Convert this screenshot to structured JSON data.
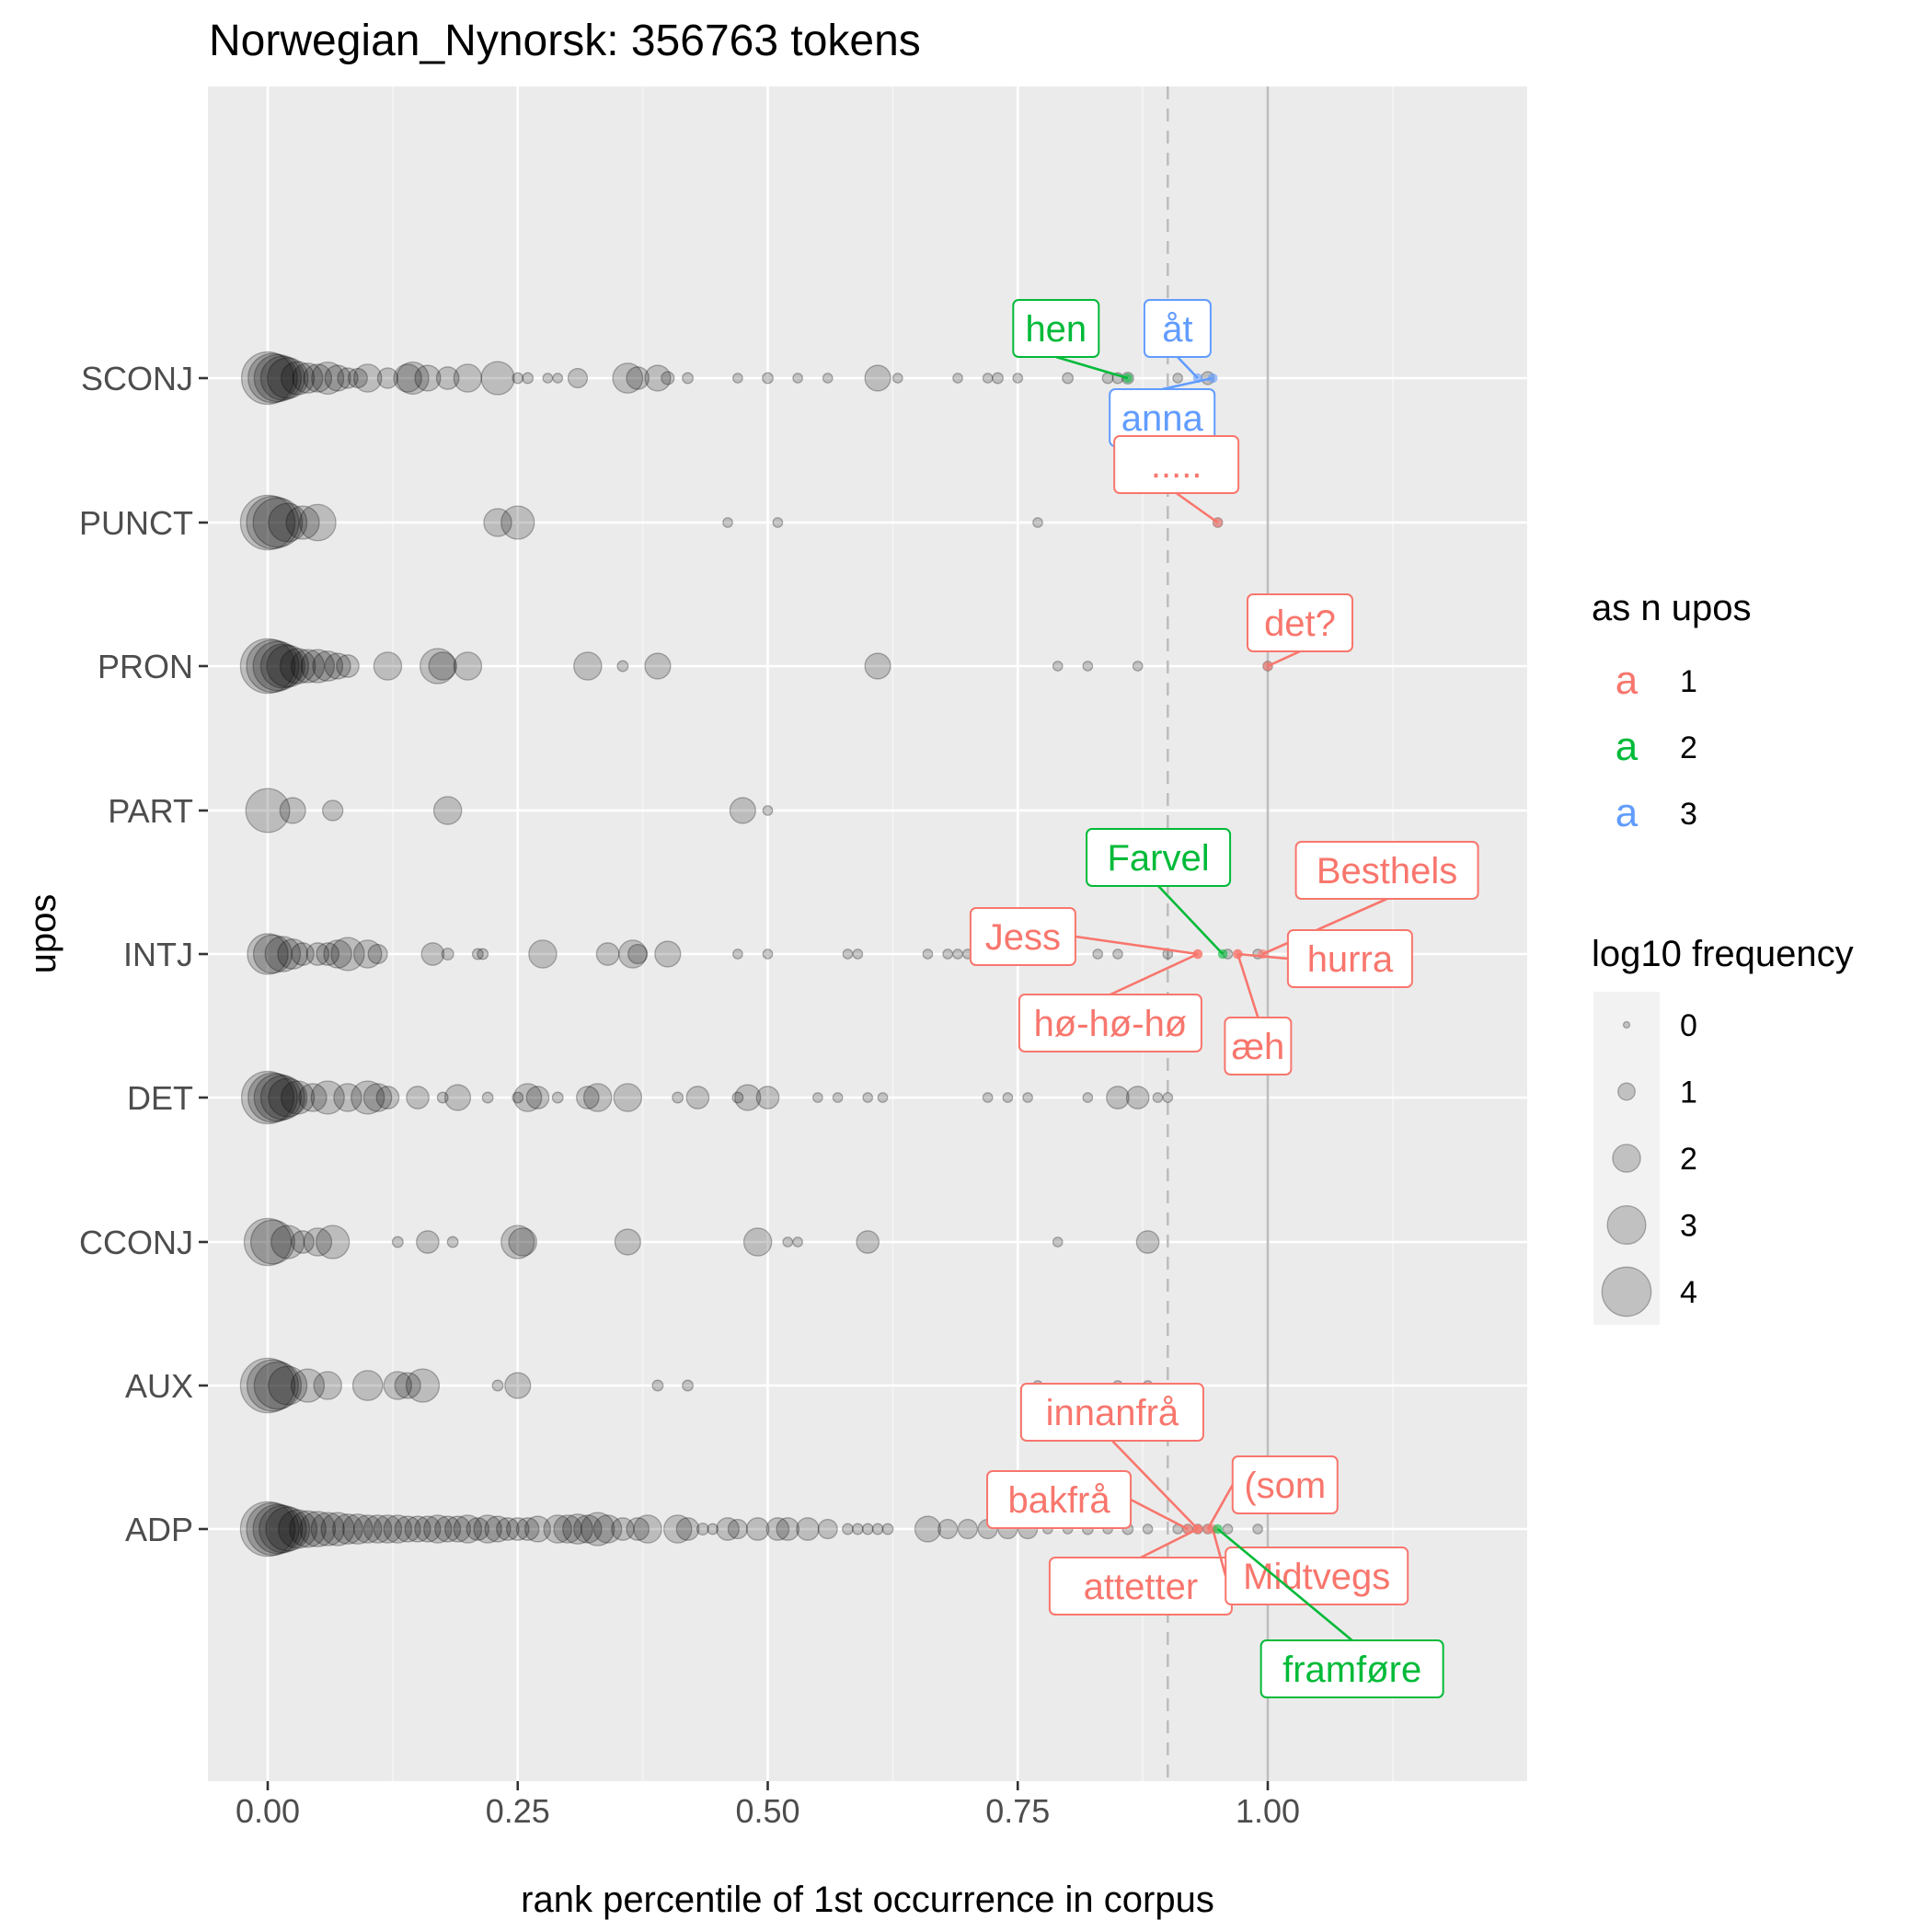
{
  "chart_data": {
    "type": "scatter",
    "title": "Norwegian_Nynorsk: 356763 tokens",
    "xlabel": "rank percentile of 1st occurrence in corpus",
    "ylabel": "upos",
    "xlim": [
      -0.06,
      1.26
    ],
    "x_ticks": [
      0,
      0.25,
      0.5,
      0.75,
      1
    ],
    "x_tick_labels": [
      "0.00",
      "0.25",
      "0.50",
      "0.75",
      "1.00"
    ],
    "categories": [
      "ADP",
      "AUX",
      "CCONJ",
      "DET",
      "INTJ",
      "PART",
      "PRON",
      "PUNCT",
      "SCONJ"
    ],
    "reference_lines": [
      {
        "x": 0.9,
        "style": "dashed"
      },
      {
        "x": 1.0,
        "style": "solid"
      }
    ],
    "grid": true,
    "legends": {
      "color": {
        "title": "as n upos",
        "entries": [
          {
            "key": "a",
            "label": "1",
            "color": "#F8766D"
          },
          {
            "key": "a",
            "label": "2",
            "color": "#00BA38"
          },
          {
            "key": "a",
            "label": "3",
            "color": "#619CFF"
          }
        ]
      },
      "size": {
        "title": "log10 frequency",
        "entries": [
          "0",
          "1",
          "2",
          "3",
          "4"
        ]
      }
    },
    "series": [
      {
        "category": "SCONJ",
        "points": [
          [
            0,
            4.3
          ],
          [
            0.005,
            4
          ],
          [
            0.01,
            3.8
          ],
          [
            0.015,
            3.5
          ],
          [
            0.02,
            3.2
          ],
          [
            0.03,
            2.5
          ],
          [
            0.04,
            2.2
          ],
          [
            0.05,
            2
          ],
          [
            0.06,
            2.4
          ],
          [
            0.07,
            1.8
          ],
          [
            0.08,
            1.3
          ],
          [
            0.09,
            1.2
          ],
          [
            0.1,
            2
          ],
          [
            0.12,
            1.3
          ],
          [
            0.14,
            2
          ],
          [
            0.145,
            2.4
          ],
          [
            0.16,
            1.8
          ],
          [
            0.18,
            1.5
          ],
          [
            0.2,
            2
          ],
          [
            0.23,
            2.5
          ],
          [
            0.25,
            0.4
          ],
          [
            0.26,
            0.4
          ],
          [
            0.28,
            0.3
          ],
          [
            0.29,
            0.3
          ],
          [
            0.31,
            1.2
          ],
          [
            0.36,
            2.2
          ],
          [
            0.37,
            1.5
          ],
          [
            0.39,
            1.8
          ],
          [
            0.4,
            0.6
          ],
          [
            0.42,
            0.4
          ],
          [
            0.47,
            0.3
          ],
          [
            0.5,
            0.4
          ],
          [
            0.53,
            0.3
          ],
          [
            0.56,
            0.3
          ],
          [
            0.61,
            1.8
          ],
          [
            0.63,
            0.3
          ],
          [
            0.69,
            0.3
          ],
          [
            0.72,
            0.3
          ],
          [
            0.73,
            0.4
          ],
          [
            0.75,
            0.3
          ],
          [
            0.8,
            0.4
          ],
          [
            0.84,
            0.4
          ],
          [
            0.85,
            0.4
          ],
          [
            0.86,
            0.5
          ],
          [
            0.91,
            0.3
          ],
          [
            0.94,
            0.6
          ]
        ]
      },
      {
        "category": "PUNCT",
        "points": [
          [
            0,
            4.5
          ],
          [
            0.005,
            4.3
          ],
          [
            0.01,
            4
          ],
          [
            0.02,
            3
          ],
          [
            0.035,
            2.5
          ],
          [
            0.05,
            2.8
          ],
          [
            0.23,
            2
          ],
          [
            0.25,
            2.5
          ],
          [
            0.46,
            0.3
          ],
          [
            0.51,
            0.3
          ],
          [
            0.77,
            0.3
          ],
          [
            0.95,
            0.3
          ]
        ]
      },
      {
        "category": "PRON",
        "points": [
          [
            0,
            4.5
          ],
          [
            0.005,
            4.3
          ],
          [
            0.01,
            4
          ],
          [
            0.015,
            3.5
          ],
          [
            0.02,
            3.3
          ],
          [
            0.03,
            2.7
          ],
          [
            0.04,
            2.5
          ],
          [
            0.05,
            2.5
          ],
          [
            0.06,
            2.2
          ],
          [
            0.07,
            1.8
          ],
          [
            0.08,
            1.5
          ],
          [
            0.12,
            2
          ],
          [
            0.17,
            2.7
          ],
          [
            0.175,
            2
          ],
          [
            0.2,
            2
          ],
          [
            0.32,
            2
          ],
          [
            0.355,
            0.4
          ],
          [
            0.39,
            1.8
          ],
          [
            0.61,
            1.8
          ],
          [
            0.79,
            0.3
          ],
          [
            0.82,
            0.3
          ],
          [
            0.87,
            0.3
          ],
          [
            1.0,
            0.3
          ]
        ]
      },
      {
        "category": "PART",
        "points": [
          [
            0,
            3.5
          ],
          [
            0.025,
            1.8
          ],
          [
            0.065,
            1.3
          ],
          [
            0.18,
            2
          ],
          [
            0.475,
            1.8
          ],
          [
            0.5,
            0.3
          ]
        ]
      },
      {
        "category": "INTJ",
        "points": [
          [
            0,
            3.2
          ],
          [
            0.005,
            3
          ],
          [
            0.015,
            2.7
          ],
          [
            0.025,
            2.2
          ],
          [
            0.035,
            1.5
          ],
          [
            0.05,
            1.5
          ],
          [
            0.06,
            1.5
          ],
          [
            0.07,
            2
          ],
          [
            0.08,
            2.5
          ],
          [
            0.1,
            2
          ],
          [
            0.11,
            1.2
          ],
          [
            0.165,
            1.5
          ],
          [
            0.18,
            0.5
          ],
          [
            0.21,
            0.4
          ],
          [
            0.215,
            0.4
          ],
          [
            0.275,
            2
          ],
          [
            0.34,
            1.5
          ],
          [
            0.365,
            2
          ],
          [
            0.37,
            1.2
          ],
          [
            0.4,
            1.8
          ],
          [
            0.47,
            0.3
          ],
          [
            0.5,
            0.3
          ],
          [
            0.58,
            0.3
          ],
          [
            0.59,
            0.3
          ],
          [
            0.66,
            0.3
          ],
          [
            0.68,
            0.3
          ],
          [
            0.69,
            0.3
          ],
          [
            0.7,
            0.3
          ],
          [
            0.75,
            0.3
          ],
          [
            0.8,
            0.3
          ],
          [
            0.83,
            0.3
          ],
          [
            0.85,
            0.3
          ],
          [
            0.9,
            0.3
          ],
          [
            0.96,
            0.3
          ],
          [
            0.99,
            0.3
          ]
        ]
      },
      {
        "category": "DET",
        "points": [
          [
            0,
            4.3
          ],
          [
            0.005,
            4
          ],
          [
            0.01,
            3.8
          ],
          [
            0.015,
            3.5
          ],
          [
            0.02,
            3
          ],
          [
            0.03,
            2.5
          ],
          [
            0.045,
            2
          ],
          [
            0.06,
            2.5
          ],
          [
            0.08,
            2
          ],
          [
            0.1,
            2.5
          ],
          [
            0.11,
            2
          ],
          [
            0.12,
            1.5
          ],
          [
            0.15,
            1.5
          ],
          [
            0.175,
            0.4
          ],
          [
            0.19,
            1.8
          ],
          [
            0.22,
            0.4
          ],
          [
            0.25,
            0.4
          ],
          [
            0.26,
            2
          ],
          [
            0.27,
            1.5
          ],
          [
            0.29,
            0.4
          ],
          [
            0.32,
            1.5
          ],
          [
            0.33,
            2
          ],
          [
            0.36,
            2
          ],
          [
            0.41,
            0.4
          ],
          [
            0.43,
            1.5
          ],
          [
            0.47,
            0.4
          ],
          [
            0.48,
            1.8
          ],
          [
            0.5,
            1.5
          ],
          [
            0.55,
            0.3
          ],
          [
            0.57,
            0.3
          ],
          [
            0.6,
            0.3
          ],
          [
            0.615,
            0.3
          ],
          [
            0.72,
            0.3
          ],
          [
            0.74,
            0.3
          ],
          [
            0.76,
            0.3
          ],
          [
            0.82,
            0.3
          ],
          [
            0.85,
            1.5
          ],
          [
            0.87,
            1.5
          ],
          [
            0.89,
            0.3
          ],
          [
            0.9,
            0.3
          ]
        ]
      },
      {
        "category": "CCONJ",
        "points": [
          [
            0,
            3.8
          ],
          [
            0.005,
            3.5
          ],
          [
            0.02,
            2.5
          ],
          [
            0.035,
            1.5
          ],
          [
            0.05,
            2
          ],
          [
            0.065,
            2.5
          ],
          [
            0.13,
            0.4
          ],
          [
            0.16,
            1.5
          ],
          [
            0.185,
            0.4
          ],
          [
            0.25,
            2.5
          ],
          [
            0.255,
            2
          ],
          [
            0.36,
            1.8
          ],
          [
            0.49,
            2
          ],
          [
            0.52,
            0.3
          ],
          [
            0.53,
            0.3
          ],
          [
            0.6,
            1.5
          ],
          [
            0.79,
            0.3
          ],
          [
            0.88,
            1.5
          ]
        ]
      },
      {
        "category": "AUX",
        "points": [
          [
            0,
            4.5
          ],
          [
            0.005,
            4.2
          ],
          [
            0.01,
            3.8
          ],
          [
            0.02,
            3
          ],
          [
            0.04,
            2.5
          ],
          [
            0.06,
            2
          ],
          [
            0.1,
            2.2
          ],
          [
            0.13,
            2
          ],
          [
            0.14,
            1.8
          ],
          [
            0.155,
            2.5
          ],
          [
            0.23,
            0.4
          ],
          [
            0.25,
            1.8
          ],
          [
            0.39,
            0.4
          ],
          [
            0.42,
            0.4
          ],
          [
            0.77,
            0.3
          ],
          [
            0.85,
            0.3
          ],
          [
            0.88,
            0.3
          ]
        ]
      },
      {
        "category": "ADP",
        "points": [
          [
            0,
            4.5
          ],
          [
            0.005,
            4.3
          ],
          [
            0.01,
            4
          ],
          [
            0.015,
            3.8
          ],
          [
            0.02,
            3.5
          ],
          [
            0.03,
            3
          ],
          [
            0.04,
            2.8
          ],
          [
            0.05,
            2.7
          ],
          [
            0.06,
            2.5
          ],
          [
            0.07,
            2.5
          ],
          [
            0.08,
            2.2
          ],
          [
            0.09,
            2.2
          ],
          [
            0.1,
            2
          ],
          [
            0.11,
            2
          ],
          [
            0.12,
            2
          ],
          [
            0.13,
            2
          ],
          [
            0.14,
            1.8
          ],
          [
            0.15,
            1.8
          ],
          [
            0.16,
            1.8
          ],
          [
            0.17,
            2
          ],
          [
            0.18,
            1.8
          ],
          [
            0.19,
            1.8
          ],
          [
            0.2,
            2
          ],
          [
            0.21,
            1.5
          ],
          [
            0.22,
            2
          ],
          [
            0.23,
            1.8
          ],
          [
            0.24,
            1.5
          ],
          [
            0.25,
            1.5
          ],
          [
            0.26,
            1.5
          ],
          [
            0.27,
            1.8
          ],
          [
            0.29,
            2
          ],
          [
            0.3,
            2
          ],
          [
            0.31,
            2.2
          ],
          [
            0.32,
            2
          ],
          [
            0.33,
            2.5
          ],
          [
            0.34,
            2
          ],
          [
            0.355,
            1.5
          ],
          [
            0.37,
            1.5
          ],
          [
            0.38,
            2
          ],
          [
            0.41,
            2
          ],
          [
            0.42,
            1.5
          ],
          [
            0.435,
            0.5
          ],
          [
            0.445,
            0.4
          ],
          [
            0.46,
            1.5
          ],
          [
            0.47,
            1.2
          ],
          [
            0.49,
            1.5
          ],
          [
            0.51,
            1.5
          ],
          [
            0.52,
            1.5
          ],
          [
            0.54,
            1.5
          ],
          [
            0.56,
            1.2
          ],
          [
            0.58,
            0.4
          ],
          [
            0.59,
            0.4
          ],
          [
            0.6,
            0.4
          ],
          [
            0.61,
            0.4
          ],
          [
            0.62,
            0.4
          ],
          [
            0.66,
            1.8
          ],
          [
            0.68,
            1.2
          ],
          [
            0.7,
            1.2
          ],
          [
            0.72,
            1.2
          ],
          [
            0.74,
            1.2
          ],
          [
            0.76,
            1.2
          ],
          [
            0.78,
            0.3
          ],
          [
            0.8,
            0.3
          ],
          [
            0.82,
            0.4
          ],
          [
            0.84,
            0.3
          ],
          [
            0.86,
            0.4
          ],
          [
            0.88,
            0.3
          ],
          [
            0.91,
            0.3
          ],
          [
            0.92,
            0.3
          ],
          [
            0.93,
            0.3
          ],
          [
            0.94,
            0.3
          ],
          [
            0.96,
            0.3
          ],
          [
            0.99,
            0.3
          ]
        ]
      }
    ],
    "annotations": [
      {
        "label": "hen",
        "category": "SCONJ",
        "x": 0.86,
        "n_upos": 2
      },
      {
        "label": "åt",
        "category": "SCONJ",
        "x": 0.93,
        "n_upos": 3
      },
      {
        "label": "anna",
        "category": "SCONJ",
        "x": 0.945,
        "n_upos": 3
      },
      {
        "label": ".....",
        "category": "PUNCT",
        "x": 0.95,
        "n_upos": 1
      },
      {
        "label": "det?",
        "category": "PRON",
        "x": 1.0,
        "n_upos": 1
      },
      {
        "label": "Farvel",
        "category": "INTJ",
        "x": 0.955,
        "n_upos": 2
      },
      {
        "label": "Besthels",
        "category": "INTJ",
        "x": 0.995,
        "n_upos": 1
      },
      {
        "label": "Jess",
        "category": "INTJ",
        "x": 0.93,
        "n_upos": 1
      },
      {
        "label": "hurra",
        "category": "INTJ",
        "x": 0.97,
        "n_upos": 1
      },
      {
        "label": "hø-hø-hø",
        "category": "INTJ",
        "x": 0.93,
        "n_upos": 1
      },
      {
        "label": "æh",
        "category": "INTJ",
        "x": 0.97,
        "n_upos": 1
      },
      {
        "label": "innanfrå",
        "category": "ADP",
        "x": 0.93,
        "n_upos": 1
      },
      {
        "label": "(som",
        "category": "ADP",
        "x": 0.94,
        "n_upos": 1
      },
      {
        "label": "bakfrå",
        "category": "ADP",
        "x": 0.92,
        "n_upos": 1
      },
      {
        "label": "attetter",
        "category": "ADP",
        "x": 0.93,
        "n_upos": 1
      },
      {
        "label": "Midtvegs",
        "category": "ADP",
        "x": 0.945,
        "n_upos": 1
      },
      {
        "label": "framføre",
        "category": "ADP",
        "x": 0.95,
        "n_upos": 2
      }
    ]
  }
}
